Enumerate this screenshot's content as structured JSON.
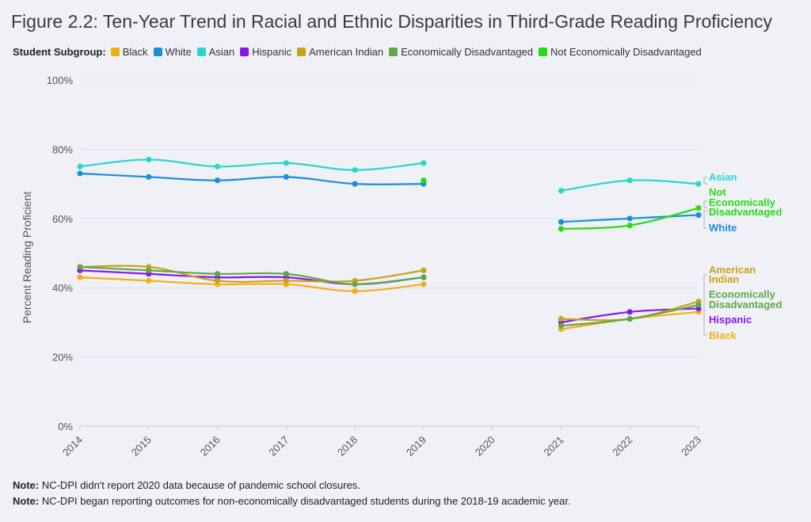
{
  "title": "Figure 2.2: Ten-Year Trend in Racial and Ethnic Disparities in Third-Grade Reading Proficiency",
  "legend_title": "Student Subgroup:",
  "notes": [
    {
      "label": "Note:",
      "text": " NC-DPI didn't report 2020 data because of pandemic school closures."
    },
    {
      "label": "Note:",
      "text": " NC-DPI began reporting outcomes for non-economically disadvantaged students during the 2018-19 academic year."
    }
  ],
  "colors": {
    "black": "#f5ad14",
    "white": "#1a8fd8",
    "asian": "#2ad6cc",
    "hispanic": "#8a14f0",
    "american_indian": "#c4a514",
    "econ_dis": "#5fa84a",
    "not_econ_dis": "#22dd10"
  },
  "chart_data": {
    "type": "line",
    "title": "Figure 2.2: Ten-Year Trend in Racial and Ethnic Disparities in Third-Grade Reading Proficiency",
    "xlabel": "",
    "ylabel": "Percent Reading Proficient",
    "x": [
      "2014",
      "2015",
      "2016",
      "2017",
      "2018",
      "2019",
      "2020",
      "2021",
      "2022",
      "2023"
    ],
    "ylim": [
      0,
      100
    ],
    "yticks": [
      "0%",
      "20%",
      "40%",
      "60%",
      "80%",
      "100%"
    ],
    "grid": true,
    "legend_position": "top",
    "series": [
      {
        "name": "Black",
        "key": "black",
        "end_label": [
          "Black"
        ],
        "values": [
          43,
          42,
          41,
          41,
          39,
          41,
          null,
          28,
          31,
          33
        ]
      },
      {
        "name": "White",
        "key": "white",
        "end_label": [
          "White"
        ],
        "values": [
          73,
          72,
          71,
          72,
          70,
          70,
          null,
          59,
          60,
          61
        ]
      },
      {
        "name": "Asian",
        "key": "asian",
        "end_label": [
          "Asian"
        ],
        "values": [
          75,
          77,
          75,
          76,
          74,
          76,
          null,
          68,
          71,
          70
        ]
      },
      {
        "name": "Hispanic",
        "key": "hispanic",
        "end_label": [
          "Hispanic"
        ],
        "values": [
          45,
          44,
          43,
          43,
          41,
          43,
          null,
          30,
          33,
          34
        ]
      },
      {
        "name": "American Indian",
        "key": "american_indian",
        "end_label": [
          "American",
          "Indian"
        ],
        "values": [
          46,
          46,
          42,
          42,
          42,
          45,
          null,
          31,
          31,
          36
        ]
      },
      {
        "name": "Economically Disadvantaged",
        "key": "econ_dis",
        "end_label": [
          "Economically",
          "Disadvantaged"
        ],
        "values": [
          46,
          45,
          44,
          44,
          41,
          43,
          null,
          29,
          31,
          35
        ]
      },
      {
        "name": "Not Economically Disadvantaged",
        "key": "not_econ_dis",
        "end_label": [
          "Not",
          "Economically",
          "Disadvantaged"
        ],
        "values": [
          null,
          null,
          null,
          null,
          null,
          71,
          null,
          57,
          58,
          63
        ]
      }
    ]
  }
}
